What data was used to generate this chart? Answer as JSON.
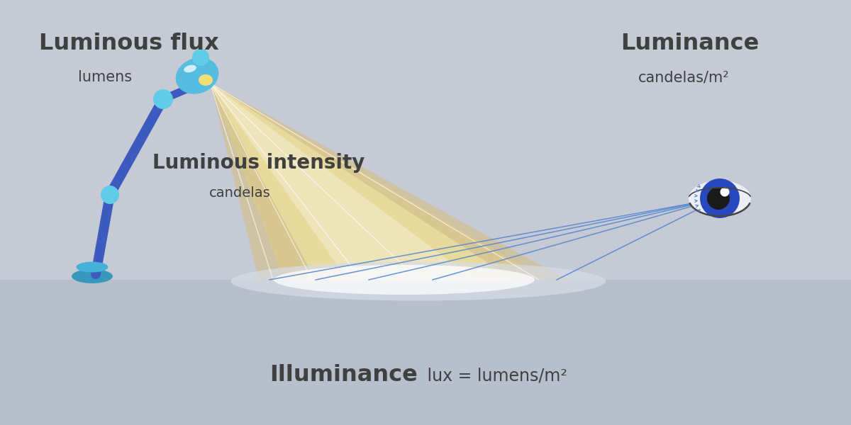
{
  "bg_color": "#c5cad5",
  "floor_color": "#b8bfcc",
  "text_color": "#404040",
  "lamp_body_blue": "#3d5bbf",
  "lamp_head_cyan": "#56bde0",
  "lamp_joint_cyan": "#60cce8",
  "lamp_base_cyan": "#45b0d8",
  "lamp_base_dark": "#3898bc",
  "beam_outer": "#ddb84a",
  "beam_mid": "#e8cc7a",
  "beam_inner": "#f5e8a8",
  "eye_white": "#eeeef6",
  "eye_blue": "#2848c0",
  "eye_dark_blue": "#1e3ab0",
  "eye_pupil": "#1a1a1a",
  "eye_highlight": "#ffffff",
  "ray_color": "#5888d0",
  "luminous_flux_label": "Luminous flux",
  "luminous_flux_sub": "lumens",
  "luminous_intensity_label": "Luminous intensity",
  "luminous_intensity_sub": "candelas",
  "luminance_label": "Luminance",
  "luminance_sub": "candelas/m²",
  "illuminance_label": "Illuminance",
  "illuminance_sub": " lux = lumens/m²"
}
